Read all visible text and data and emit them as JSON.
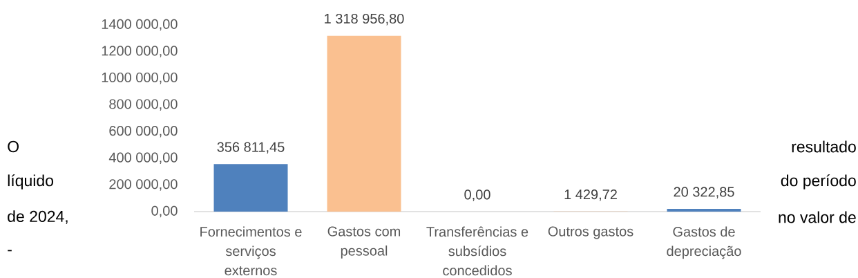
{
  "chart_data": {
    "type": "bar",
    "categories": [
      "Fornecimentos e serviços externos",
      "Gastos com pessoal",
      "Transferências e subsídios concedidos",
      "Outros gastos",
      "Gastos de depreciação"
    ],
    "values": [
      356811.45,
      1318956.8,
      0,
      1429.72,
      20322.85
    ],
    "colors": [
      "#4f81bd",
      "#fac090",
      "#4f81bd",
      "#fac090",
      "#4f81bd"
    ],
    "value_labels": [
      "356 811,45",
      "1 318 956,80",
      "0,00",
      "1 429,72",
      "20 322,85"
    ],
    "ylim": [
      0,
      1400000
    ],
    "yticks": [
      {
        "value": 0,
        "label": "0,00"
      },
      {
        "value": 200000,
        "label": "200 000,00"
      },
      {
        "value": 400000,
        "label": "400 000,00"
      },
      {
        "value": 600000,
        "label": "600 000,00"
      },
      {
        "value": 800000,
        "label": "800 000,00"
      },
      {
        "value": 1000000,
        "label": "1000 000,00"
      },
      {
        "value": 1200000,
        "label": "1200 000,00"
      },
      {
        "value": 1400000,
        "label": "1400 000,00"
      }
    ],
    "annotations": [
      "O",
      "resultado",
      "líquido",
      "do período",
      "de 2024,",
      "no valor de",
      "-"
    ]
  }
}
